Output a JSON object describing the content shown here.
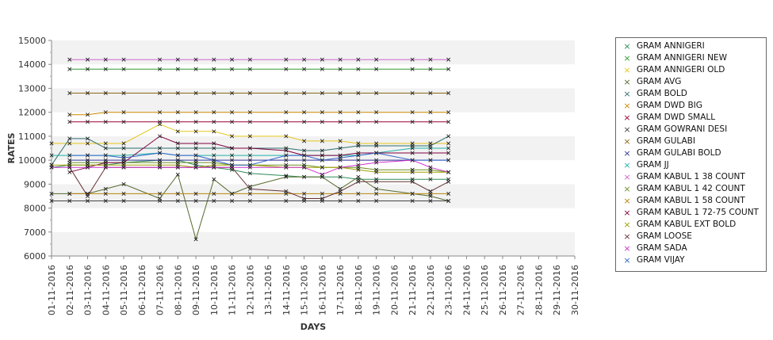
{
  "chart_data": {
    "type": "line",
    "title": "",
    "xlabel": "DAYS",
    "ylabel": "RATES",
    "ylim": [
      6000,
      15000
    ],
    "y_ticks": [
      6000,
      7000,
      8000,
      9000,
      10000,
      11000,
      12000,
      13000,
      14000,
      15000
    ],
    "grid": "alternating horizontal bands",
    "legend": "right",
    "categories": [
      "01-11-2016",
      "02-11-2016",
      "03-11-2016",
      "04-11-2016",
      "05-11-2016",
      "06-11-2016",
      "07-11-2016",
      "08-11-2016",
      "09-11-2016",
      "10-11-2016",
      "11-11-2016",
      "12-11-2016",
      "13-11-2016",
      "14-11-2016",
      "15-11-2016",
      "16-11-2016",
      "17-11-2016",
      "18-11-2016",
      "19-11-2016",
      "20-11-2016",
      "21-11-2016",
      "22-11-2016",
      "23-11-2016",
      "24-11-2016",
      "25-11-2016",
      "26-11-2016",
      "27-11-2016",
      "28-11-2016",
      "29-11-2016",
      "30-11-2016"
    ],
    "series": [
      {
        "name": "GRAM ANNIGERI",
        "color": "#2e8b57",
        "values": [
          9700,
          9800,
          9800,
          9800,
          9900,
          null,
          10000,
          10000,
          9800,
          9700,
          9600,
          9450,
          null,
          9350,
          9300,
          9300,
          9300,
          9200,
          9200,
          null,
          9200,
          9200,
          9200,
          null,
          null,
          null,
          null,
          null,
          null,
          null
        ]
      },
      {
        "name": "GRAM ANNIGERI NEW",
        "color": "#339933",
        "values": [
          null,
          13800,
          13800,
          13800,
          13800,
          null,
          13800,
          13800,
          13800,
          13800,
          13800,
          13800,
          null,
          13800,
          13800,
          13800,
          13800,
          13800,
          13800,
          null,
          13800,
          13800,
          13800,
          null,
          null,
          null,
          null,
          null,
          null,
          null
        ]
      },
      {
        "name": "GRAM ANNIGERI OLD",
        "color": "#e6c619",
        "values": [
          10700,
          10700,
          10700,
          10700,
          10700,
          null,
          11500,
          11200,
          11200,
          11200,
          11000,
          11000,
          null,
          11000,
          10800,
          10800,
          10800,
          10700,
          10700,
          null,
          10700,
          10700,
          10700,
          null,
          null,
          null,
          null,
          null,
          null,
          null
        ]
      },
      {
        "name": "GRAM AVG",
        "color": "#556b2f",
        "values": [
          8600,
          8600,
          8600,
          8800,
          9000,
          null,
          8400,
          9400,
          6700,
          9200,
          8600,
          8900,
          null,
          9300,
          9300,
          9300,
          8800,
          9300,
          8800,
          null,
          8600,
          8500,
          8300,
          null,
          null,
          null,
          null,
          null,
          null,
          null
        ]
      },
      {
        "name": "GRAM BOLD",
        "color": "#2f6f6f",
        "values": [
          9800,
          10900,
          10900,
          10500,
          10500,
          null,
          10500,
          10500,
          10500,
          10500,
          10500,
          10500,
          null,
          10500,
          10400,
          10400,
          10500,
          10600,
          10600,
          null,
          10600,
          10600,
          11000,
          null,
          null,
          null,
          null,
          null,
          null,
          null
        ]
      },
      {
        "name": "GRAM DWD BIG",
        "color": "#cc8800",
        "values": [
          null,
          11900,
          11900,
          12000,
          12000,
          null,
          12000,
          12000,
          12000,
          12000,
          12000,
          12000,
          null,
          12000,
          12000,
          12000,
          12000,
          12000,
          12000,
          null,
          12000,
          12000,
          12000,
          null,
          null,
          null,
          null,
          null,
          null,
          null
        ]
      },
      {
        "name": "GRAM DWD SMALL",
        "color": "#990033",
        "values": [
          null,
          11600,
          11600,
          11600,
          11600,
          null,
          11600,
          11600,
          11600,
          11600,
          11600,
          11600,
          null,
          11600,
          11600,
          11600,
          11600,
          11600,
          11600,
          null,
          11600,
          11600,
          11600,
          null,
          null,
          null,
          null,
          null,
          null,
          null
        ]
      },
      {
        "name": "GRAM GOWRANI DESI",
        "color": "#444444",
        "values": [
          8300,
          8300,
          8300,
          8300,
          8300,
          null,
          8300,
          8300,
          8300,
          8300,
          8300,
          8300,
          null,
          8300,
          8300,
          8300,
          8300,
          8300,
          8300,
          null,
          8300,
          8300,
          8300,
          null,
          null,
          null,
          null,
          null,
          null,
          null
        ]
      },
      {
        "name": "GRAM GULABI",
        "color": "#8b6914",
        "values": [
          null,
          12800,
          12800,
          12800,
          12800,
          null,
          12800,
          12800,
          12800,
          12800,
          12800,
          12800,
          null,
          12800,
          12800,
          12800,
          12800,
          12800,
          12800,
          null,
          12800,
          12800,
          12800,
          null,
          null,
          null,
          null,
          null,
          null,
          null
        ]
      },
      {
        "name": "GRAM GULABI BOLD",
        "color": "#333399",
        "values": [
          null,
          10000,
          10000,
          10000,
          10000,
          null,
          10000,
          10000,
          10000,
          10000,
          10000,
          10000,
          null,
          10000,
          10000,
          10000,
          10000,
          10000,
          10000,
          null,
          10000,
          10000,
          10000,
          null,
          null,
          null,
          null,
          null,
          null,
          null
        ]
      },
      {
        "name": "GRAM JJ",
        "color": "#20b2aa",
        "values": [
          10200,
          10200,
          10200,
          10200,
          10200,
          null,
          10300,
          10200,
          10200,
          10200,
          10200,
          10200,
          null,
          10200,
          10200,
          10200,
          10200,
          10200,
          10300,
          null,
          10500,
          10500,
          10500,
          null,
          null,
          null,
          null,
          null,
          null,
          null
        ]
      },
      {
        "name": "GRAM KABUL 1 38 COUNT",
        "color": "#cc66cc",
        "values": [
          null,
          14200,
          14200,
          14200,
          14200,
          null,
          14200,
          14200,
          14200,
          14200,
          14200,
          14200,
          null,
          14200,
          14200,
          14200,
          14200,
          14200,
          14200,
          null,
          14200,
          14200,
          14200,
          null,
          null,
          null,
          null,
          null,
          null,
          null
        ]
      },
      {
        "name": "GRAM KABUL 1 42 COUNT",
        "color": "#6b8e23",
        "values": [
          null,
          9900,
          9900,
          9900,
          9900,
          null,
          9900,
          9900,
          9900,
          9900,
          9800,
          9800,
          null,
          9800,
          9800,
          9700,
          9700,
          9700,
          9600,
          null,
          9600,
          9600,
          9500,
          null,
          null,
          null,
          null,
          null,
          null,
          null
        ]
      },
      {
        "name": "GRAM KABUL 1 58 COUNT",
        "color": "#b8860b",
        "values": [
          null,
          8600,
          8600,
          8600,
          8600,
          null,
          8600,
          8600,
          8600,
          8600,
          8600,
          8600,
          null,
          8600,
          8600,
          8600,
          8600,
          8600,
          8600,
          null,
          8600,
          8600,
          8600,
          null,
          null,
          null,
          null,
          null,
          null,
          null
        ]
      },
      {
        "name": "GRAM KABUL 1 72-75 COUNT",
        "color": "#800040",
        "values": [
          null,
          9500,
          9700,
          9900,
          9900,
          null,
          11000,
          10700,
          10700,
          10700,
          10500,
          10500,
          null,
          10400,
          10200,
          10200,
          10200,
          10300,
          10300,
          null,
          10300,
          10300,
          10300,
          null,
          null,
          null,
          null,
          null,
          null,
          null
        ]
      },
      {
        "name": "GRAM KABUL EXT BOLD",
        "color": "#a0a000",
        "values": [
          9800,
          9800,
          9800,
          9800,
          9800,
          null,
          9800,
          9800,
          9700,
          9800,
          9800,
          9800,
          null,
          9700,
          9700,
          9700,
          9700,
          9600,
          9500,
          null,
          9500,
          9500,
          9500,
          null,
          null,
          null,
          null,
          null,
          null,
          null
        ]
      },
      {
        "name": "GRAM LOOSE",
        "color": "#663333",
        "values": [
          null,
          9700,
          8500,
          9700,
          9700,
          null,
          9700,
          9700,
          9700,
          9700,
          9700,
          8800,
          null,
          8700,
          8400,
          8400,
          8700,
          9100,
          9100,
          null,
          9100,
          8700,
          9100,
          null,
          null,
          null,
          null,
          null,
          null,
          null
        ]
      },
      {
        "name": "GRAM SADA",
        "color": "#cc33cc",
        "values": [
          9700,
          9700,
          9700,
          9700,
          9700,
          null,
          9700,
          9700,
          9700,
          9700,
          9700,
          9700,
          null,
          9700,
          9700,
          9400,
          9700,
          9800,
          9900,
          null,
          10000,
          9700,
          9500,
          null,
          null,
          null,
          null,
          null,
          null,
          null
        ]
      },
      {
        "name": "GRAM VIJAY",
        "color": "#3366cc",
        "values": [
          null,
          10200,
          10200,
          10200,
          10100,
          null,
          10300,
          10200,
          10200,
          10000,
          9800,
          9800,
          null,
          10200,
          10200,
          10000,
          10100,
          10200,
          10300,
          null,
          10000,
          10000,
          10000,
          null,
          null,
          null,
          null,
          null,
          null,
          null
        ]
      }
    ]
  }
}
